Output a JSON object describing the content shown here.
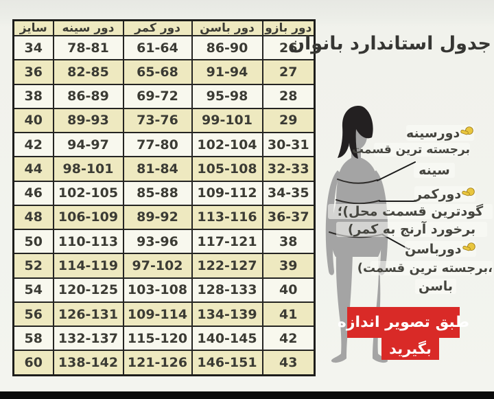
{
  "title": "جدول استاندارد بانوان",
  "table": {
    "headers": [
      "سایز",
      "دور سینه",
      "دور کمر",
      "دور باسن",
      "دور بازو"
    ],
    "rows": [
      [
        "34",
        "78-81",
        "61-64",
        "86-90",
        "26"
      ],
      [
        "36",
        "82-85",
        "65-68",
        "91-94",
        "27"
      ],
      [
        "38",
        "86-89",
        "69-72",
        "95-98",
        "28"
      ],
      [
        "40",
        "89-93",
        "73-76",
        "99-101",
        "29"
      ],
      [
        "42",
        "94-97",
        "77-80",
        "102-104",
        "30-31"
      ],
      [
        "44",
        "98-101",
        "81-84",
        "105-108",
        "32-33"
      ],
      [
        "46",
        "102-105",
        "85-88",
        "109-112",
        "34-35"
      ],
      [
        "48",
        "106-109",
        "89-92",
        "113-116",
        "36-37"
      ],
      [
        "50",
        "110-113",
        "93-96",
        "117-121",
        "38"
      ],
      [
        "52",
        "114-119",
        "97-102",
        "122-127",
        "39"
      ],
      [
        "54",
        "120-125",
        "103-108",
        "128-133",
        "40"
      ],
      [
        "56",
        "126-131",
        "109-114",
        "134-139",
        "41"
      ],
      [
        "58",
        "132-137",
        "115-120",
        "140-145",
        "42"
      ],
      [
        "60",
        "138-142",
        "121-126",
        "146-151",
        "43"
      ]
    ]
  },
  "chart_data": {
    "type": "table",
    "title": "جدول استاندارد بانوان",
    "columns": [
      "سایز",
      "دور سینه",
      "دور کمر",
      "دور باسن",
      "دور بازو"
    ],
    "rows": [
      [
        "34",
        "78-81",
        "61-64",
        "86-90",
        "26"
      ],
      [
        "36",
        "82-85",
        "65-68",
        "91-94",
        "27"
      ],
      [
        "38",
        "86-89",
        "69-72",
        "95-98",
        "28"
      ],
      [
        "40",
        "89-93",
        "73-76",
        "99-101",
        "29"
      ],
      [
        "42",
        "94-97",
        "77-80",
        "102-104",
        "30-31"
      ],
      [
        "44",
        "98-101",
        "81-84",
        "105-108",
        "32-33"
      ],
      [
        "46",
        "102-105",
        "85-88",
        "109-112",
        "34-35"
      ],
      [
        "48",
        "106-109",
        "89-92",
        "113-116",
        "36-37"
      ],
      [
        "50",
        "110-113",
        "93-96",
        "117-121",
        "38"
      ],
      [
        "52",
        "114-119",
        "97-102",
        "122-127",
        "39"
      ],
      [
        "54",
        "120-125",
        "103-108",
        "128-133",
        "40"
      ],
      [
        "56",
        "126-131",
        "109-114",
        "134-139",
        "41"
      ],
      [
        "58",
        "132-137",
        "115-120",
        "140-145",
        "42"
      ],
      [
        "60",
        "138-142",
        "121-126",
        "146-151",
        "43"
      ]
    ]
  },
  "annotations": {
    "bust_label": "دورسینه",
    "bust_note_1": "برجسته ترین قسمت",
    "bust_note_2": "سینه",
    "waist_label": "دورکمر",
    "waist_note_1": "گودترین قسمت محل)؛",
    "waist_note_2": "برخورد آرنج به کمر)",
    "hip_label": "دورباسن",
    "hip_note_1": "،برجسته ترین قسمت)",
    "hip_note_2": "باسن"
  },
  "banner": {
    "line_1": "طبق تصویر اندازه",
    "line_2": "بگیرید"
  },
  "icons": {
    "hand": "pointing-hand-icon"
  },
  "colors": {
    "row_tan": "#eee9c0",
    "row_light": "#f8f8ee",
    "table_border": "#1d1d1b",
    "banner_red": "#d92a27",
    "hand_yellow": "#e9c63e",
    "silhouette_gray": "#a4a4a4",
    "hair_black": "#232021",
    "bottom_bar": "#0b0b0b"
  }
}
